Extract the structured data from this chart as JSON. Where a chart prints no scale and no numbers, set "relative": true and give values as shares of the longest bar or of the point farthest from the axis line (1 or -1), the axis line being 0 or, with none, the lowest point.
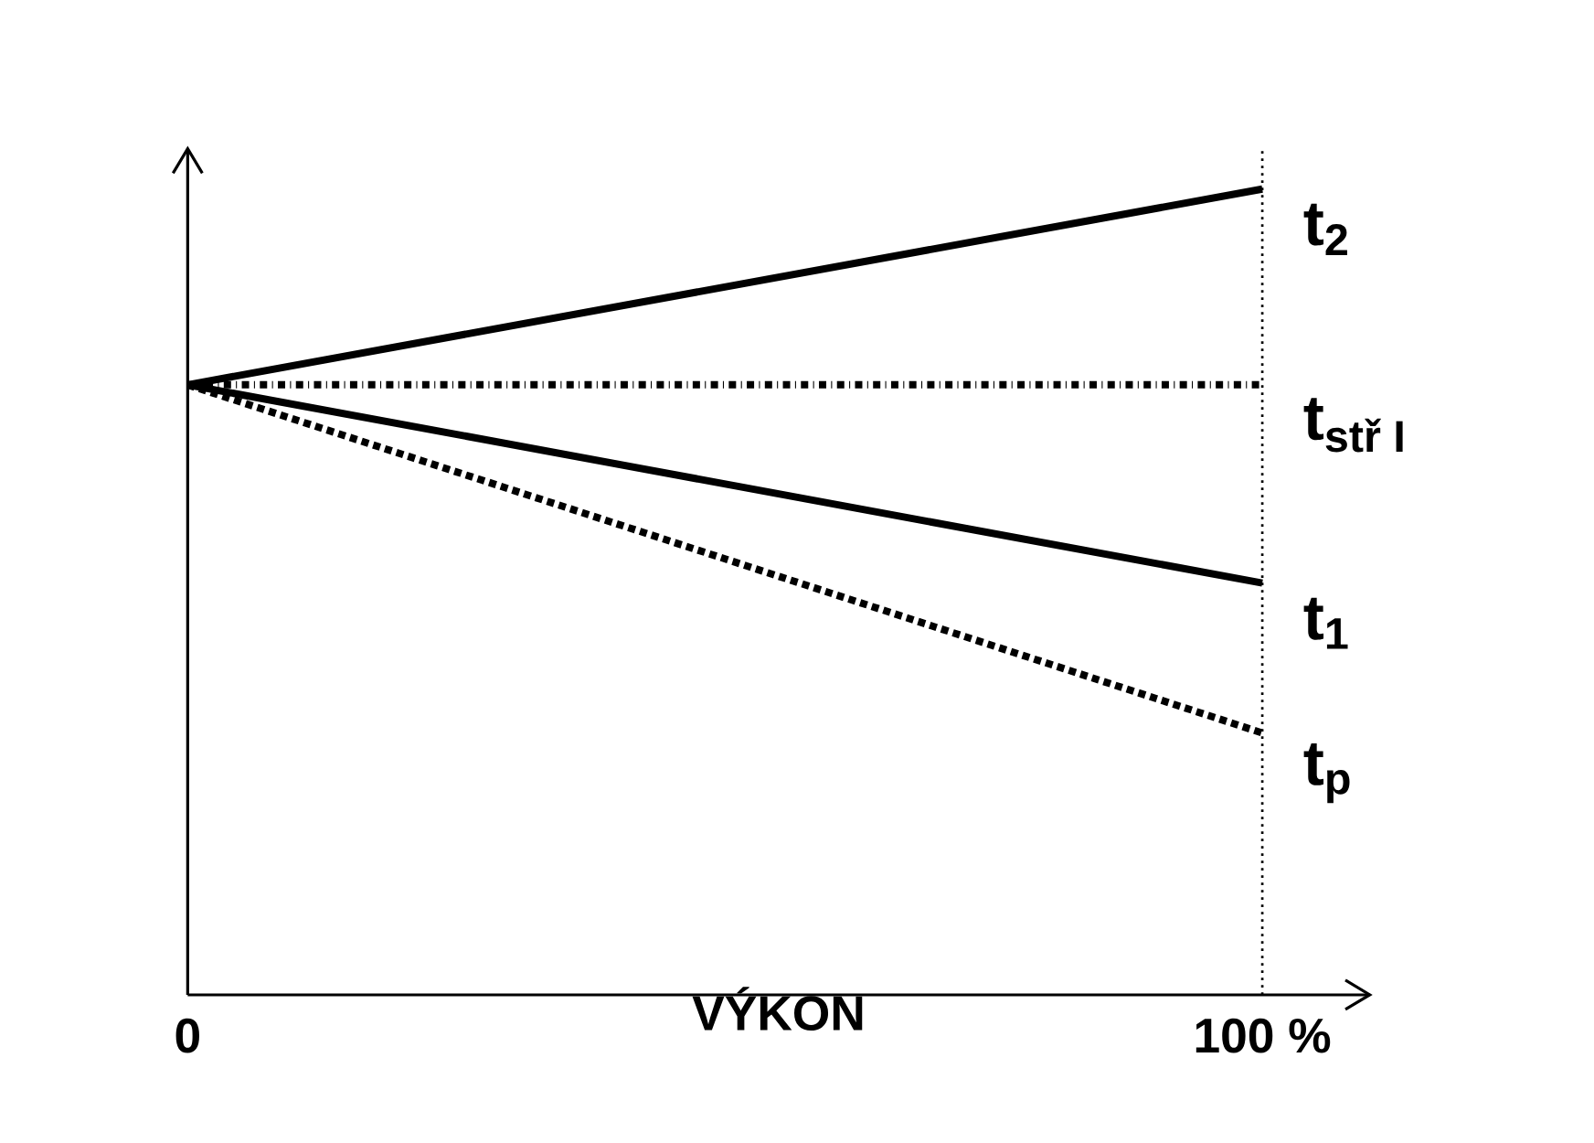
{
  "chart_data": {
    "type": "line",
    "relative": true,
    "xlabel": "VÝKON",
    "x": [
      0,
      100
    ],
    "xlim": [
      0,
      110
    ],
    "xticks": [
      0,
      {
        "value": 100,
        "label": "100 %"
      }
    ],
    "marker": "none",
    "legend": false,
    "grid": false,
    "series": [
      {
        "name": "t$_{2}$",
        "color": "#000000",
        "values": [
          0.757,
          1
        ],
        "line_style": "solid"
      },
      {
        "name": "\\text{t}_{\\text{stř I}}",
        "color": "#000000",
        "values": [
          0.757,
          0.757
        ],
        "line_style": "dashdot"
      },
      {
        "name": "t$_{1}$",
        "color": "#000000",
        "values": [
          0.757,
          0.511
        ],
        "line_style": "solid"
      },
      {
        "name": "t$_{p}$",
        "color": "#000000",
        "values": [
          0.757,
          0.325
        ],
        "line_style": "dotted"
      }
    ],
    "ref_lines": [
      {
        "axis": "x",
        "value": 100,
        "color": "#000000",
        "line_style": "dotted"
      }
    ]
  }
}
